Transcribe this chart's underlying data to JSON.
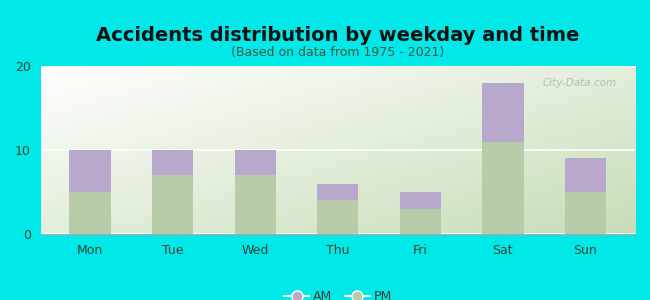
{
  "title": "Accidents distribution by weekday and time",
  "subtitle": "(Based on data from 1975 - 2021)",
  "categories": [
    "Mon",
    "Tue",
    "Wed",
    "Thu",
    "Fri",
    "Sat",
    "Sun"
  ],
  "pm_values": [
    5,
    7,
    7,
    4,
    3,
    11,
    5
  ],
  "am_values": [
    5,
    3,
    3,
    2,
    2,
    7,
    4
  ],
  "am_color": "#b8a8cc",
  "pm_color": "#b8ccaa",
  "ylim": [
    0,
    20
  ],
  "yticks": [
    0,
    10,
    20
  ],
  "background_color": "#00e8e8",
  "bar_width": 0.5,
  "title_fontsize": 14,
  "subtitle_fontsize": 9,
  "tick_fontsize": 9,
  "legend_fontsize": 9,
  "watermark": "City-Data.com"
}
